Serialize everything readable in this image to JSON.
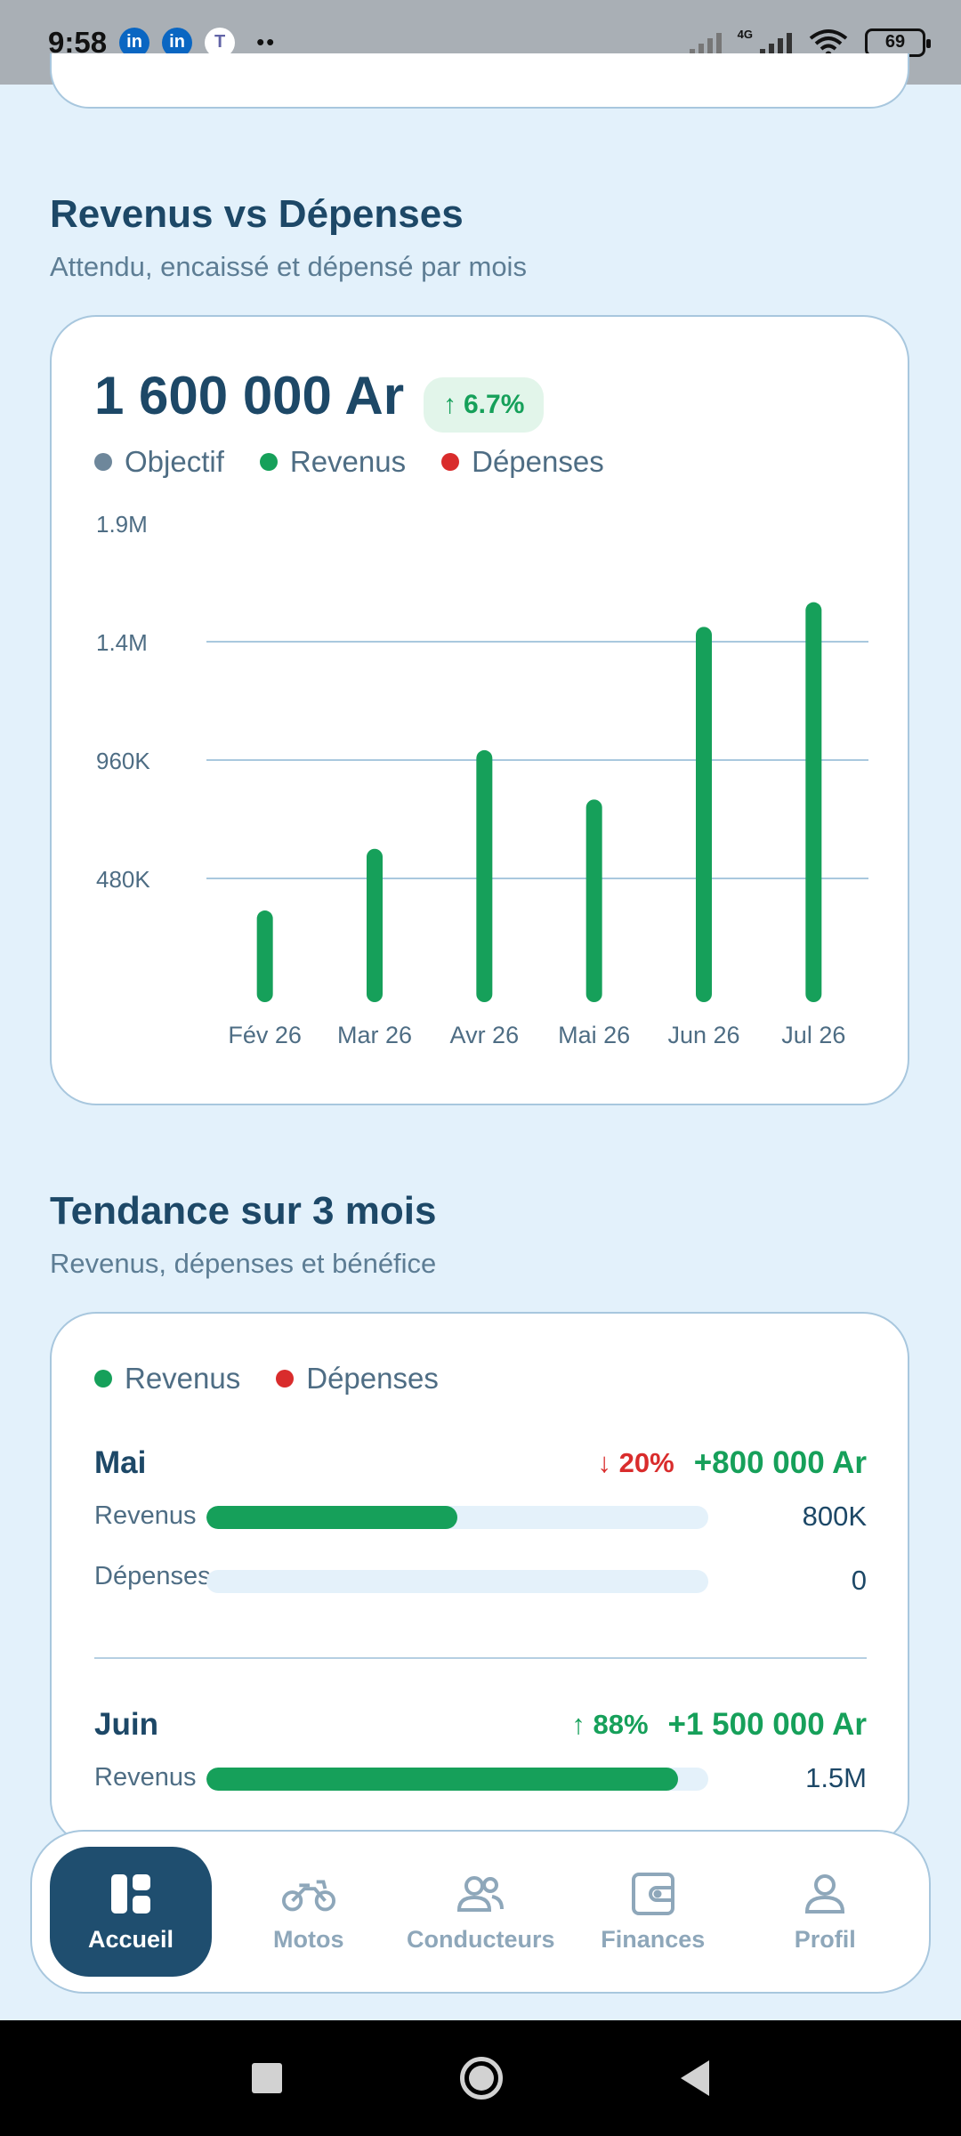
{
  "status_bar": {
    "time": "9:58",
    "apps": [
      "in",
      "in",
      "T"
    ],
    "dots": "••",
    "network": "4G",
    "battery": "69"
  },
  "revenue_section": {
    "title": "Revenus vs Dépenses",
    "subtitle": "Attendu, encaissé et dépensé par mois",
    "total": "1 600 000 Ar",
    "change": "6.7%",
    "legend": [
      {
        "label": "Objectif",
        "color": "#6e879b"
      },
      {
        "label": "Revenus",
        "color": "#16a05a"
      },
      {
        "label": "Dépenses",
        "color": "#d92c2c"
      }
    ]
  },
  "chart_data": {
    "type": "bar",
    "categories": [
      "Fév 26",
      "Mar 26",
      "Avr 26",
      "Mai 26",
      "Jun 26",
      "Jul 26"
    ],
    "series": [
      {
        "name": "Revenus",
        "color": "#16a05a",
        "values": [
          350000,
          600000,
          1000000,
          800000,
          1500000,
          1600000
        ]
      }
    ],
    "y_ticks": [
      "1.9M",
      "1.4M",
      "960K",
      "480K"
    ],
    "y_tick_values": [
      1920000,
      1440000,
      960000,
      480000
    ],
    "ylim": [
      0,
      1920000
    ],
    "grid": true
  },
  "trend_section": {
    "title": "Tendance sur 3 mois",
    "subtitle": "Revenus, dépenses et bénéfice",
    "legend": [
      {
        "label": "Revenus",
        "color": "#16a05a"
      },
      {
        "label": "Dépenses",
        "color": "#d92c2c"
      }
    ],
    "months": [
      {
        "name": "Mai",
        "change": "20%",
        "direction": "down",
        "profit": "+800 000 Ar",
        "revenue_label": "Revenus",
        "revenue_value": "800K",
        "revenue_fraction": 0.5,
        "expense_label": "Dépenses",
        "expense_value": "0",
        "expense_fraction": 0
      },
      {
        "name": "Juin",
        "change": "88%",
        "direction": "up",
        "profit": "+1 500 000 Ar",
        "revenue_label": "Revenus",
        "revenue_value": "1.5M",
        "revenue_fraction": 0.94
      }
    ]
  },
  "bottom_nav": {
    "items": [
      {
        "label": "Accueil",
        "icon": "dashboard-icon",
        "active": true
      },
      {
        "label": "Motos",
        "icon": "motorcycle-icon"
      },
      {
        "label": "Conducteurs",
        "icon": "users-icon"
      },
      {
        "label": "Finances",
        "icon": "wallet-icon"
      },
      {
        "label": "Profil",
        "icon": "user-icon"
      }
    ]
  }
}
